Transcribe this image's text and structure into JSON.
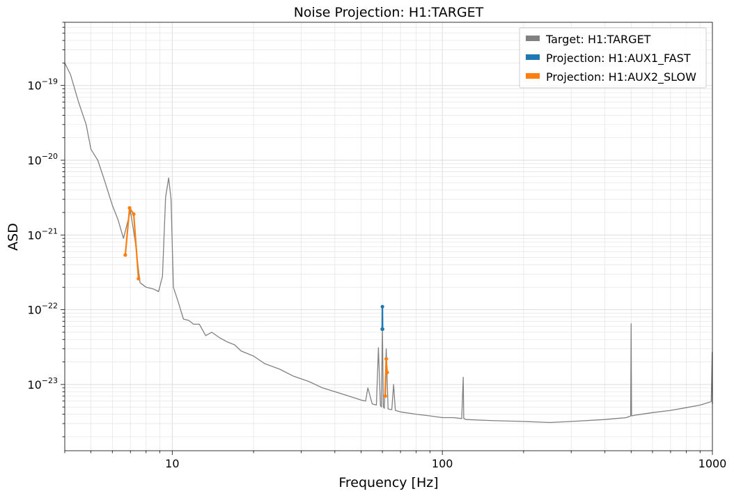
{
  "chart_data": {
    "type": "line",
    "title": "Noise Projection: H1:TARGET",
    "xlabel": "Frequency [Hz]",
    "ylabel": "ASD",
    "xscale": "log",
    "yscale": "log",
    "xlim": [
      4,
      1000
    ],
    "ylim": [
      1.3e-24,
      7e-19
    ],
    "grid": true,
    "legend_position": "top-right",
    "x_ticks": [
      {
        "value": 10,
        "label": "10"
      },
      {
        "value": 100,
        "label": "100"
      },
      {
        "value": 1000,
        "label": "1000"
      }
    ],
    "y_ticks": [
      {
        "value": 1e-23,
        "base": "10",
        "exp": "−23"
      },
      {
        "value": 1e-22,
        "base": "10",
        "exp": "−22"
      },
      {
        "value": 1e-21,
        "base": "10",
        "exp": "−21"
      },
      {
        "value": 1e-20,
        "base": "10",
        "exp": "−20"
      },
      {
        "value": 1e-19,
        "base": "10",
        "exp": "−19"
      }
    ],
    "series": [
      {
        "name": "Target: H1:TARGET",
        "color": "#808080",
        "x": [
          4,
          4.2,
          4.5,
          4.8,
          5.0,
          5.3,
          5.6,
          6.0,
          6.3,
          6.6,
          7.0,
          7.3,
          7.6,
          8.0,
          8.5,
          8.9,
          9.2,
          9.45,
          9.7,
          9.9,
          10.1,
          10.5,
          11.0,
          11.5,
          12.0,
          12.6,
          13.3,
          14.0,
          15.0,
          16.0,
          17.0,
          18.0,
          20.0,
          22.0,
          25.0,
          28.0,
          32.0,
          36.0,
          40.0,
          45.0,
          50.0,
          52.0,
          53.0,
          55.0,
          57.0,
          58.0,
          59.0,
          59.5,
          60.0,
          60.5,
          61.0,
          62.0,
          63.0,
          65.0,
          66.0,
          67.0,
          70.0,
          80.0,
          90.0,
          100.0,
          110.0,
          118.0,
          119.5,
          120.0,
          120.5,
          122.0,
          150.0,
          200.0,
          250.0,
          300.0,
          400.0,
          480.0,
          498.0,
          500.0,
          502.0,
          520.0,
          600.0,
          700.0,
          800.0,
          900.0,
          990.0,
          998.0,
          1000.0
        ],
        "y": [
          2e-19,
          1.4e-19,
          6e-20,
          3e-20,
          1.4e-20,
          1e-20,
          5.5e-21,
          2.5e-21,
          1.6e-21,
          9e-22,
          2.1e-21,
          8e-22,
          2.3e-22,
          2e-22,
          1.9e-22,
          1.75e-22,
          2.8e-22,
          3.2e-21,
          5.8e-21,
          3e-21,
          2e-22,
          1.3e-22,
          7.5e-23,
          7.2e-23,
          6.4e-23,
          6.4e-23,
          4.5e-23,
          5e-23,
          4.2e-23,
          3.7e-23,
          3.4e-23,
          2.8e-23,
          2.4e-23,
          1.9e-23,
          1.6e-23,
          1.3e-23,
          1.1e-23,
          9e-24,
          8e-24,
          7e-24,
          6.2e-24,
          6e-24,
          9e-24,
          5.5e-24,
          5.3e-24,
          3.1e-23,
          5.2e-24,
          5e-24,
          6e-23,
          5e-24,
          4.8e-24,
          3e-23,
          4.7e-24,
          4.6e-24,
          1e-23,
          4.5e-24,
          4.3e-24,
          4e-24,
          3.8e-24,
          3.6e-24,
          3.6e-24,
          3.5e-24,
          1.25e-23,
          3.5e-24,
          3.5e-24,
          3.4e-24,
          3.3e-24,
          3.2e-24,
          3.1e-24,
          3.2e-24,
          3.4e-24,
          3.6e-24,
          3.8e-24,
          6.5e-23,
          3.8e-24,
          3.9e-24,
          4.2e-24,
          4.5e-24,
          4.9e-24,
          5.3e-24,
          5.9e-24,
          2.7e-23,
          5.5e-24
        ]
      },
      {
        "name": "Projection: H1:AUX1_FAST",
        "color": "#1f77b4",
        "x": [
          59.9,
          60.0,
          60.1
        ],
        "y": [
          5.5e-23,
          1.1e-22,
          5.5e-23
        ]
      },
      {
        "name": "Projection: H1:AUX2_SLOW",
        "color": "#ff7f0e",
        "x": [
          6.7,
          6.95,
          7.2,
          7.5
        ],
        "y": [
          5.4e-22,
          2.3e-21,
          1.9e-21,
          2.6e-22
        ]
      },
      {
        "name": "Projection: H1:AUX2_SLOW",
        "color": "#ff7f0e",
        "x": [
          61.5,
          62.0,
          62.5
        ],
        "y": [
          7e-24,
          2.2e-23,
          1.45e-23
        ]
      }
    ]
  }
}
